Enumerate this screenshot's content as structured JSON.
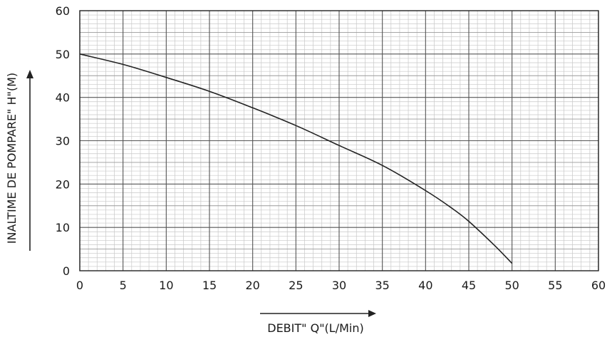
{
  "chart_data": {
    "type": "line",
    "title": "",
    "xlabel": "DEBIT\" Q\"(L/Min)",
    "ylabel": "INALTIME DE POMPARE\"  H\"(M)",
    "xlim": [
      0,
      60
    ],
    "ylim": [
      0,
      60
    ],
    "x_ticks": [
      0,
      5,
      10,
      15,
      20,
      25,
      30,
      35,
      40,
      45,
      50,
      55,
      60
    ],
    "y_ticks": [
      0,
      10,
      20,
      30,
      40,
      50,
      60
    ],
    "x_tick_labels": [
      "0",
      "5",
      "10",
      "15",
      "20",
      "25",
      "30",
      "35",
      "40",
      "45",
      "50",
      "55",
      "60"
    ],
    "y_tick_labels": [
      "0",
      "10",
      "20",
      "30",
      "40",
      "50",
      "60"
    ],
    "grid": true,
    "legend": "none",
    "colors": {
      "curve": "#222222",
      "major_grid": "#555555",
      "minor_grid": "#c8c8c8",
      "axis": "#222222"
    },
    "series": [
      {
        "x": [
          0,
          5,
          10,
          15,
          20,
          25,
          30,
          35,
          40,
          43,
          45,
          48,
          50
        ],
        "y": [
          50,
          47.6,
          44.6,
          41.4,
          37.6,
          33.5,
          28.9,
          24.3,
          18.5,
          14.5,
          11.4,
          5.8,
          1.7
        ]
      }
    ]
  }
}
